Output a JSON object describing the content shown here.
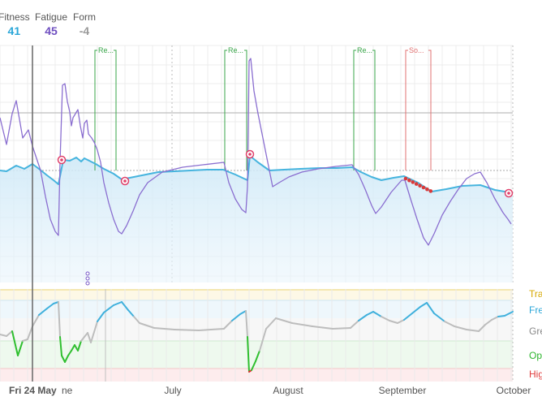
{
  "legend": {
    "fitness": {
      "label": "Fitness",
      "value": "41",
      "color": "#2aa6d8"
    },
    "fatigue": {
      "label": "Fatigue",
      "value": "45",
      "color": "#6f4fc0"
    },
    "form": {
      "label": "Form",
      "value": "-4",
      "color": "#9a9a9a"
    }
  },
  "chart_data": {
    "type": "line",
    "x_axis": {
      "tick_labels": [
        "Fri 24 May",
        "ne",
        "July",
        "August",
        "September",
        "October"
      ],
      "highlighted": "Fri 24 May"
    },
    "markers": [
      {
        "label": "Re...",
        "kind": "race",
        "color": "#3aa64a"
      },
      {
        "label": "Re...",
        "kind": "race",
        "color": "#3aa64a"
      },
      {
        "label": "Re...",
        "kind": "race",
        "color": "#3aa64a"
      },
      {
        "label": "So...",
        "kind": "sick",
        "color": "#e07070"
      }
    ],
    "zones": [
      {
        "label": "Tra",
        "color": "#d6a800",
        "band": "#fdf8e6"
      },
      {
        "label": "Fre",
        "color": "#2aa6d8",
        "band": "#eef7fc"
      },
      {
        "label": "Gre",
        "color": "#888888",
        "band": "#f7f7f7"
      },
      {
        "label": "Opt",
        "color": "#2db52d",
        "band": "#eef9ee"
      },
      {
        "label": "Hig",
        "color": "#e03c3c",
        "band": "#fdeced"
      }
    ],
    "series": [
      {
        "key": "fitness",
        "color": "#46b4de",
        "points": [
          [
            0,
            210
          ],
          [
            8,
            211
          ],
          [
            20,
            204
          ],
          [
            30,
            208
          ],
          [
            40,
            202
          ],
          [
            48,
            208
          ],
          [
            58,
            216
          ],
          [
            66,
            222
          ],
          [
            72,
            227
          ],
          [
            78,
            197
          ],
          [
            86,
            198
          ],
          [
            94,
            194
          ],
          [
            100,
            199
          ],
          [
            104,
            195
          ],
          [
            110,
            198
          ],
          [
            118,
            202
          ],
          [
            128,
            208
          ],
          [
            140,
            214
          ],
          [
            150,
            221
          ],
          [
            160,
            219
          ],
          [
            175,
            216
          ],
          [
            195,
            212
          ],
          [
            215,
            211
          ],
          [
            235,
            210
          ],
          [
            255,
            209
          ],
          [
            275,
            209
          ],
          [
            290,
            215
          ],
          [
            305,
            222
          ],
          [
            308,
            192
          ],
          [
            318,
            200
          ],
          [
            332,
            210
          ],
          [
            350,
            209
          ],
          [
            370,
            208
          ],
          [
            395,
            207
          ],
          [
            415,
            207
          ],
          [
            434,
            206
          ],
          [
            445,
            212
          ],
          [
            458,
            218
          ],
          [
            470,
            222
          ],
          [
            485,
            219
          ],
          [
            498,
            217
          ],
          [
            515,
            225
          ],
          [
            532,
            236
          ],
          [
            550,
            233
          ],
          [
            570,
            229
          ],
          [
            592,
            228
          ],
          [
            610,
            234
          ],
          [
            622,
            236
          ],
          [
            632,
            238
          ]
        ]
      },
      {
        "key": "fatigue",
        "color": "#8a6ed0",
        "points": [
          [
            0,
            145
          ],
          [
            8,
            178
          ],
          [
            15,
            140
          ],
          [
            20,
            124
          ],
          [
            28,
            170
          ],
          [
            35,
            160
          ],
          [
            40,
            180
          ],
          [
            45,
            195
          ],
          [
            50,
            210
          ],
          [
            56,
            242
          ],
          [
            62,
            270
          ],
          [
            68,
            285
          ],
          [
            72,
            290
          ],
          [
            74,
            200
          ],
          [
            77,
            105
          ],
          [
            80,
            103
          ],
          [
            83,
            125
          ],
          [
            86,
            138
          ],
          [
            88,
            155
          ],
          [
            90,
            145
          ],
          [
            93,
            140
          ],
          [
            96,
            135
          ],
          [
            99,
            155
          ],
          [
            102,
            170
          ],
          [
            104,
            152
          ],
          [
            107,
            148
          ],
          [
            109,
            165
          ],
          [
            113,
            170
          ],
          [
            116,
            175
          ],
          [
            120,
            185
          ],
          [
            124,
            200
          ],
          [
            128,
            225
          ],
          [
            134,
            250
          ],
          [
            140,
            270
          ],
          [
            146,
            285
          ],
          [
            150,
            288
          ],
          [
            156,
            278
          ],
          [
            164,
            260
          ],
          [
            172,
            240
          ],
          [
            182,
            225
          ],
          [
            200,
            212
          ],
          [
            225,
            206
          ],
          [
            250,
            203
          ],
          [
            276,
            200
          ],
          [
            282,
            225
          ],
          [
            290,
            245
          ],
          [
            298,
            258
          ],
          [
            303,
            262
          ],
          [
            305,
            230
          ],
          [
            307,
            75
          ],
          [
            309,
            72
          ],
          [
            313,
            112
          ],
          [
            318,
            140
          ],
          [
            324,
            170
          ],
          [
            330,
            200
          ],
          [
            336,
            230
          ],
          [
            344,
            225
          ],
          [
            356,
            218
          ],
          [
            372,
            212
          ],
          [
            392,
            208
          ],
          [
            414,
            205
          ],
          [
            434,
            203
          ],
          [
            442,
            215
          ],
          [
            450,
            233
          ],
          [
            458,
            253
          ],
          [
            463,
            263
          ],
          [
            470,
            255
          ],
          [
            482,
            237
          ],
          [
            495,
            222
          ],
          [
            499,
            222
          ],
          [
            506,
            245
          ],
          [
            514,
            270
          ],
          [
            522,
            293
          ],
          [
            528,
            302
          ],
          [
            535,
            288
          ],
          [
            545,
            265
          ],
          [
            555,
            248
          ],
          [
            565,
            233
          ],
          [
            575,
            220
          ],
          [
            585,
            214
          ],
          [
            592,
            212
          ],
          [
            600,
            225
          ],
          [
            610,
            245
          ],
          [
            620,
            262
          ],
          [
            626,
            270
          ],
          [
            630,
            276
          ]
        ]
      },
      {
        "key": "form",
        "points": [
          [
            0,
            412
          ],
          [
            8,
            414
          ],
          [
            15,
            408
          ],
          [
            22,
            438
          ],
          [
            28,
            420
          ],
          [
            34,
            418
          ],
          [
            40,
            402
          ],
          [
            48,
            388
          ],
          [
            58,
            380
          ],
          [
            66,
            374
          ],
          [
            72,
            372
          ],
          [
            74,
            415
          ],
          [
            76,
            438
          ],
          [
            80,
            446
          ],
          [
            84,
            438
          ],
          [
            88,
            432
          ],
          [
            92,
            425
          ],
          [
            96,
            432
          ],
          [
            100,
            420
          ],
          [
            104,
            415
          ],
          [
            108,
            410
          ],
          [
            112,
            422
          ],
          [
            120,
            396
          ],
          [
            128,
            385
          ],
          [
            140,
            376
          ],
          [
            150,
            372
          ],
          [
            158,
            382
          ],
          [
            165,
            390
          ],
          [
            172,
            398
          ],
          [
            190,
            404
          ],
          [
            215,
            406
          ],
          [
            245,
            407
          ],
          [
            276,
            405
          ],
          [
            286,
            395
          ],
          [
            296,
            387
          ],
          [
            303,
            383
          ],
          [
            305,
            415
          ],
          [
            307,
            458
          ],
          [
            310,
            456
          ],
          [
            315,
            445
          ],
          [
            320,
            432
          ],
          [
            328,
            405
          ],
          [
            340,
            392
          ],
          [
            360,
            398
          ],
          [
            385,
            402
          ],
          [
            410,
            405
          ],
          [
            432,
            404
          ],
          [
            442,
            395
          ],
          [
            452,
            388
          ],
          [
            460,
            384
          ],
          [
            470,
            390
          ],
          [
            480,
            395
          ],
          [
            490,
            398
          ],
          [
            498,
            394
          ],
          [
            508,
            386
          ],
          [
            518,
            378
          ],
          [
            526,
            373
          ],
          [
            535,
            386
          ],
          [
            548,
            396
          ],
          [
            560,
            402
          ],
          [
            575,
            406
          ],
          [
            590,
            408
          ],
          [
            598,
            400
          ],
          [
            606,
            394
          ],
          [
            614,
            390
          ],
          [
            622,
            389
          ],
          [
            632,
            384
          ]
        ]
      }
    ]
  }
}
